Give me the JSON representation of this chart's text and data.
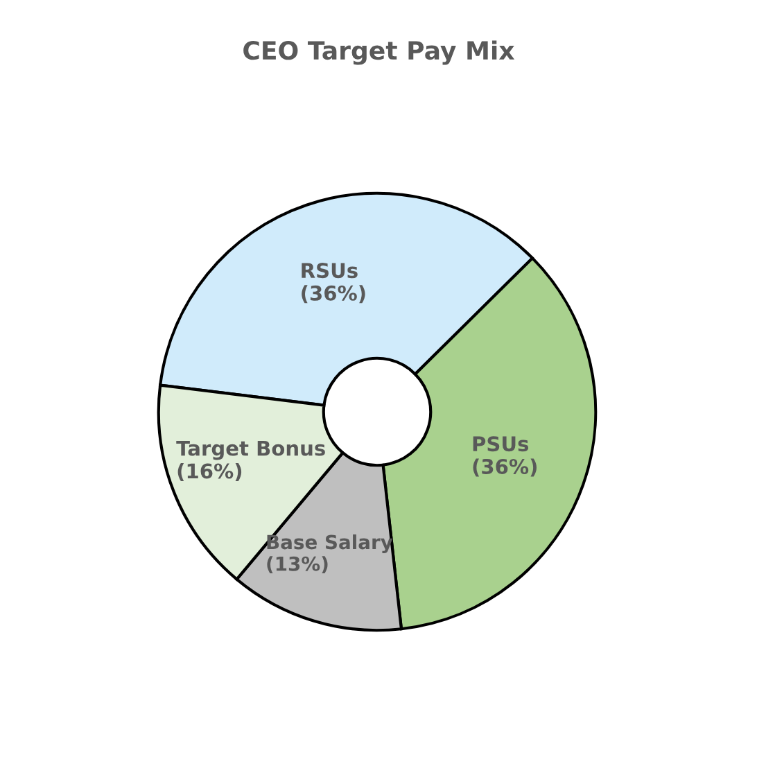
{
  "chart_data": {
    "type": "donut",
    "title": "CEO Target Pay Mix",
    "categories": [
      "RSUs",
      "PSUs",
      "Base Salary",
      "Target Bonus"
    ],
    "values": [
      36,
      36,
      13,
      16
    ],
    "value_labels": [
      "(36%)",
      "(36%)",
      "(13%)",
      "(16%)"
    ],
    "colors": [
      "#d0ebfb",
      "#a9d18e",
      "#bfbfbf",
      "#e2efda"
    ],
    "legend": false
  }
}
